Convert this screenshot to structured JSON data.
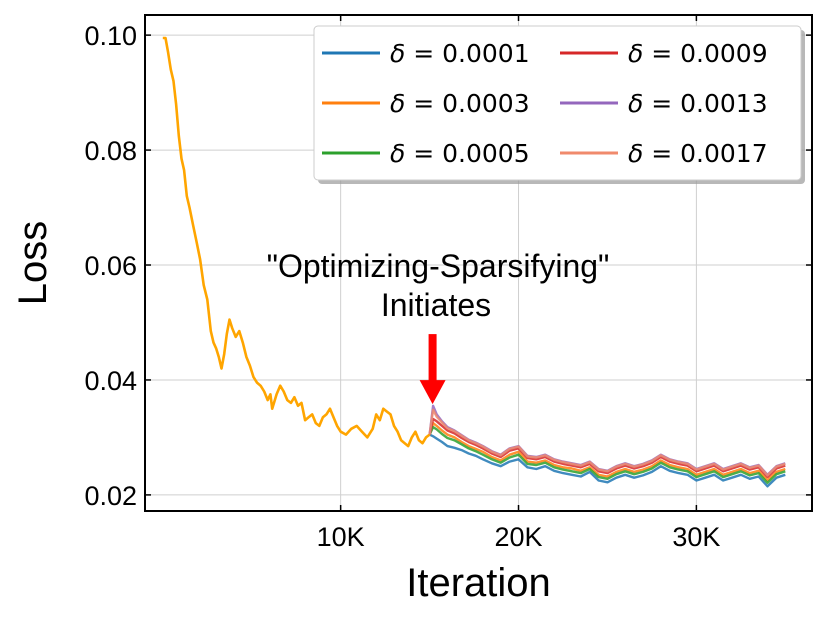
{
  "chart_data": {
    "type": "line",
    "xlabel": "Iteration",
    "ylabel": "Loss",
    "xlim": [
      -1000,
      36500
    ],
    "ylim": [
      0.0172,
      0.1035
    ],
    "xticks": [
      {
        "value": 10000,
        "label": "10K"
      },
      {
        "value": 20000,
        "label": "20K"
      },
      {
        "value": 30000,
        "label": "30K"
      }
    ],
    "yticks": [
      {
        "value": 0.02,
        "label": "0.02"
      },
      {
        "value": 0.04,
        "label": "0.04"
      },
      {
        "value": 0.06,
        "label": "0.06"
      },
      {
        "value": 0.08,
        "label": "0.08"
      },
      {
        "value": 0.1,
        "label": "0.10"
      }
    ],
    "grid": true,
    "legend_position": "top-right",
    "colors": {
      "shared": "#ffa500",
      "arrow": "#ff0000"
    },
    "annotation": {
      "line1": "\"Optimizing-Sparsifying\"",
      "line2": "Initiates",
      "arrow_target_x": 15000,
      "arrow_target_y": 0.0358
    },
    "shared_segment": {
      "name": "shared",
      "x": [
        0,
        150,
        300,
        450,
        600,
        750,
        900,
        1050,
        1200,
        1350,
        1500,
        1700,
        1900,
        2100,
        2300,
        2500,
        2700,
        2850,
        3000,
        3150,
        3300,
        3450,
        3600,
        3750,
        3900,
        4100,
        4300,
        4500,
        4700,
        4900,
        5100,
        5300,
        5500,
        5700,
        5900,
        6050,
        6150,
        6250,
        6400,
        6600,
        6800,
        7000,
        7200,
        7400,
        7600,
        7800,
        8000,
        8200,
        8400,
        8600,
        8800,
        9000,
        9200,
        9400,
        9600,
        9800,
        10000,
        10300,
        10600,
        10900,
        11200,
        11500,
        11800,
        12000,
        12200,
        12400,
        12600,
        12800,
        13000,
        13200,
        13400,
        13600,
        13800,
        14000,
        14200,
        14400,
        14600,
        14800,
        15000
      ],
      "values": [
        0.0995,
        0.0995,
        0.097,
        0.094,
        0.092,
        0.088,
        0.0825,
        0.0785,
        0.0765,
        0.072,
        0.07,
        0.067,
        0.064,
        0.061,
        0.0565,
        0.054,
        0.0485,
        0.0465,
        0.0455,
        0.044,
        0.042,
        0.0445,
        0.048,
        0.0505,
        0.049,
        0.0475,
        0.0485,
        0.0465,
        0.044,
        0.0425,
        0.0405,
        0.0395,
        0.039,
        0.038,
        0.0365,
        0.0375,
        0.035,
        0.036,
        0.0375,
        0.039,
        0.038,
        0.0365,
        0.036,
        0.037,
        0.0355,
        0.036,
        0.033,
        0.0335,
        0.034,
        0.0325,
        0.032,
        0.0335,
        0.034,
        0.035,
        0.0335,
        0.032,
        0.031,
        0.0305,
        0.0315,
        0.032,
        0.031,
        0.03,
        0.0315,
        0.034,
        0.033,
        0.035,
        0.0345,
        0.034,
        0.032,
        0.031,
        0.0295,
        0.029,
        0.0285,
        0.03,
        0.031,
        0.0295,
        0.029,
        0.03,
        0.0305
      ]
    },
    "branch_x": [
      15000,
      15200,
      15400,
      15700,
      16000,
      16400,
      16800,
      17200,
      17600,
      18000,
      18500,
      19000,
      19500,
      20000,
      20500,
      21000,
      21500,
      22000,
      22500,
      23000,
      23500,
      24000,
      24500,
      25000,
      25500,
      26000,
      26500,
      27000,
      27500,
      28000,
      28500,
      29000,
      29500,
      30000,
      30500,
      31000,
      31500,
      32000,
      32500,
      33000,
      33500,
      34000,
      34500,
      35000
    ],
    "series": [
      {
        "name": "δ = 0.0001",
        "color": "#1f77b4",
        "values": [
          0.0305,
          0.0302,
          0.0298,
          0.0292,
          0.0285,
          0.0282,
          0.0278,
          0.0272,
          0.0268,
          0.0262,
          0.0255,
          0.025,
          0.0258,
          0.0262,
          0.0248,
          0.0245,
          0.025,
          0.0242,
          0.0238,
          0.0235,
          0.0232,
          0.024,
          0.0225,
          0.0222,
          0.023,
          0.0235,
          0.023,
          0.0234,
          0.024,
          0.025,
          0.0242,
          0.0238,
          0.0235,
          0.0225,
          0.023,
          0.0235,
          0.0225,
          0.023,
          0.0235,
          0.0228,
          0.0232,
          0.0215,
          0.023,
          0.0235
        ]
      },
      {
        "name": "δ = 0.0003",
        "color": "#ff7f0e",
        "values": [
          0.0305,
          0.0325,
          0.032,
          0.0312,
          0.0305,
          0.03,
          0.0292,
          0.0285,
          0.028,
          0.0275,
          0.0266,
          0.026,
          0.027,
          0.0275,
          0.0258,
          0.0256,
          0.026,
          0.0252,
          0.0248,
          0.0246,
          0.0242,
          0.0248,
          0.0235,
          0.0232,
          0.024,
          0.0245,
          0.024,
          0.0244,
          0.025,
          0.026,
          0.0252,
          0.0248,
          0.0245,
          0.0235,
          0.024,
          0.0245,
          0.0235,
          0.024,
          0.0245,
          0.0238,
          0.0242,
          0.0225,
          0.024,
          0.0245
        ]
      },
      {
        "name": "δ = 0.0005",
        "color": "#2ca02c",
        "values": [
          0.0305,
          0.0318,
          0.0314,
          0.0306,
          0.0299,
          0.0295,
          0.0288,
          0.0281,
          0.0276,
          0.027,
          0.0262,
          0.0256,
          0.0265,
          0.027,
          0.0254,
          0.0252,
          0.0256,
          0.0248,
          0.0244,
          0.0241,
          0.0238,
          0.0245,
          0.0231,
          0.0228,
          0.0236,
          0.0241,
          0.0236,
          0.024,
          0.0246,
          0.0256,
          0.0248,
          0.0244,
          0.0241,
          0.0231,
          0.0236,
          0.0241,
          0.0231,
          0.0236,
          0.0241,
          0.0234,
          0.0238,
          0.0221,
          0.0236,
          0.0241
        ]
      },
      {
        "name": "δ = 0.0009",
        "color": "#d62728",
        "values": [
          0.0305,
          0.0332,
          0.0328,
          0.032,
          0.0312,
          0.0307,
          0.0299,
          0.0292,
          0.0287,
          0.0281,
          0.0272,
          0.0266,
          0.0277,
          0.0281,
          0.0264,
          0.0262,
          0.0266,
          0.0258,
          0.0254,
          0.0251,
          0.0248,
          0.0254,
          0.0241,
          0.0238,
          0.0246,
          0.0251,
          0.0246,
          0.025,
          0.0256,
          0.0266,
          0.0258,
          0.0254,
          0.0251,
          0.0241,
          0.0246,
          0.0251,
          0.0241,
          0.0246,
          0.0251,
          0.0244,
          0.0248,
          0.0231,
          0.0246,
          0.0251
        ]
      },
      {
        "name": "δ = 0.0013",
        "color": "#9467bd",
        "values": [
          0.0305,
          0.0355,
          0.034,
          0.0328,
          0.0318,
          0.0312,
          0.0304,
          0.0296,
          0.0291,
          0.0285,
          0.0276,
          0.027,
          0.0281,
          0.0285,
          0.0268,
          0.0266,
          0.027,
          0.0262,
          0.0258,
          0.0255,
          0.0252,
          0.0258,
          0.0245,
          0.0242,
          0.025,
          0.0255,
          0.025,
          0.0254,
          0.026,
          0.027,
          0.0262,
          0.0258,
          0.0255,
          0.0245,
          0.025,
          0.0255,
          0.0245,
          0.025,
          0.0255,
          0.0248,
          0.0252,
          0.0235,
          0.025,
          0.0255
        ]
      },
      {
        "name": "δ = 0.0017",
        "color": "#f08a6c",
        "values": [
          0.0305,
          0.0348,
          0.0336,
          0.0326,
          0.0316,
          0.0311,
          0.0303,
          0.0295,
          0.029,
          0.0284,
          0.0275,
          0.0269,
          0.028,
          0.0284,
          0.0267,
          0.0265,
          0.0269,
          0.0261,
          0.0257,
          0.0254,
          0.0251,
          0.0257,
          0.0244,
          0.0241,
          0.0249,
          0.0254,
          0.0249,
          0.0253,
          0.0259,
          0.0269,
          0.0261,
          0.0257,
          0.0254,
          0.0244,
          0.0249,
          0.0254,
          0.0244,
          0.0249,
          0.0254,
          0.0247,
          0.0251,
          0.0234,
          0.0249,
          0.0254
        ]
      }
    ],
    "legend": [
      {
        "label_prefix": "δ",
        "label_value": " = 0.0001",
        "series_index": 0
      },
      {
        "label_prefix": "δ",
        "label_value": " = 0.0003",
        "series_index": 1
      },
      {
        "label_prefix": "δ",
        "label_value": " = 0.0005",
        "series_index": 2
      },
      {
        "label_prefix": "δ",
        "label_value": " = 0.0009",
        "series_index": 3
      },
      {
        "label_prefix": "δ",
        "label_value": " = 0.0013",
        "series_index": 4
      },
      {
        "label_prefix": "δ",
        "label_value": " = 0.0017",
        "series_index": 5
      }
    ]
  }
}
